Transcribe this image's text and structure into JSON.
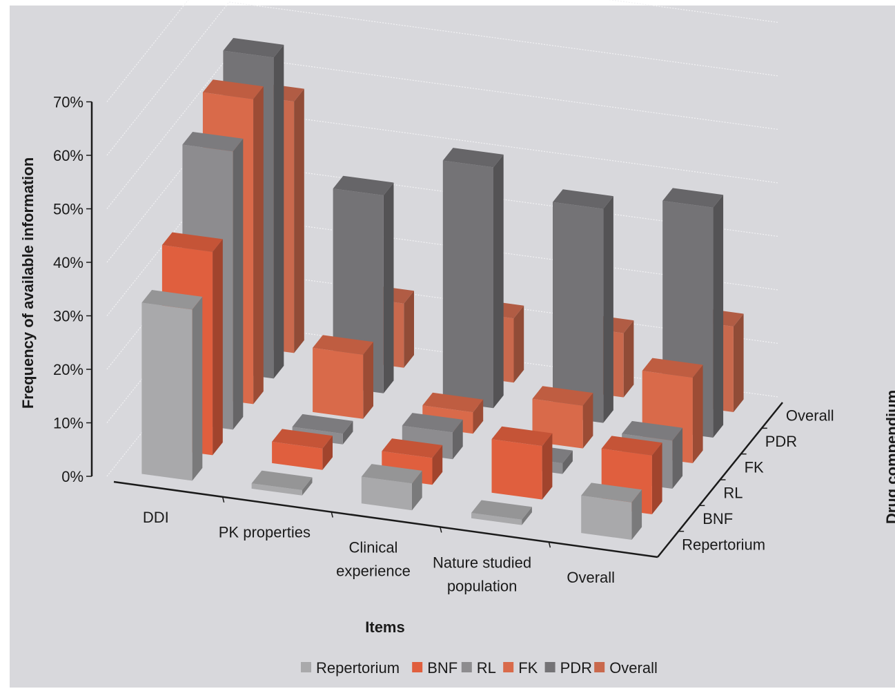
{
  "chart_data": {
    "type": "bar3d",
    "ylabel": "Frequency of available information",
    "xlabel": "Items",
    "zlabel": "Drug compendium",
    "ylim": [
      0,
      70
    ],
    "y_ticks": [
      "0%",
      "10%",
      "20%",
      "30%",
      "40%",
      "50%",
      "60%",
      "70%"
    ],
    "categories": [
      "DDI",
      "PK properties",
      "Clinical experience",
      "Nature studied population",
      "Overall"
    ],
    "category_lines": [
      [
        "DDI"
      ],
      [
        "PK properties"
      ],
      [
        "Clinical",
        "experience"
      ],
      [
        "Nature studied",
        "population"
      ],
      [
        "Overall"
      ]
    ],
    "series": [
      {
        "name": "Repertorium",
        "color": "#a9a9ab",
        "values": [
          32,
          1,
          5,
          1,
          7
        ]
      },
      {
        "name": "BNF",
        "color": "#e05f3e",
        "values": [
          38,
          4,
          5,
          10,
          11
        ]
      },
      {
        "name": "RL",
        "color": "#8d8c8f",
        "values": [
          52,
          2,
          5,
          2,
          9
        ]
      },
      {
        "name": "FK",
        "color": "#d96a4a",
        "values": [
          57,
          12,
          4,
          8,
          16
        ]
      },
      {
        "name": "PDR",
        "color": "#747376",
        "values": [
          60,
          37,
          45,
          40,
          43
        ]
      },
      {
        "name": "Overall",
        "color": "#c9694d",
        "values": [
          47,
          12,
          12,
          12,
          16
        ]
      }
    ],
    "grid": true,
    "legend_position": "bottom"
  }
}
